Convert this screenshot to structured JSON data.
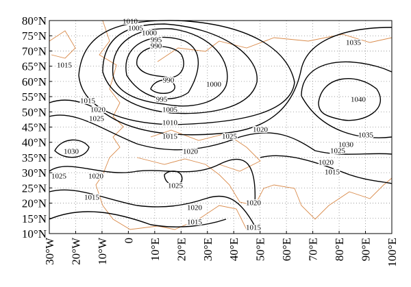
{
  "latitude_labels": [
    "80°N",
    "75°N",
    "70°N",
    "65°N",
    "60°N",
    "55°N",
    "50°N",
    "45°N",
    "40°N",
    "35°N",
    "30°N",
    "25°N",
    "20°N",
    "15°N",
    "10°N"
  ],
  "longitude_labels": [
    "30°W",
    "20°W",
    "10°W",
    "0",
    "10°E",
    "20°E",
    "30°E",
    "40°E",
    "50°E",
    "60°E",
    "70°E",
    "80°E",
    "90°E",
    "100°E"
  ],
  "contour_labels": [
    "1010",
    "1005",
    "1000",
    "995",
    "990",
    "990",
    "1000",
    "995",
    "1005",
    "1010",
    "1015",
    "1020",
    "1025",
    "1020",
    "1015",
    "1015",
    "1020",
    "1025",
    "1030",
    "1025",
    "1020",
    "1025",
    "1015",
    "1020",
    "1015",
    "1020",
    "1015",
    "1035",
    "1040",
    "1035",
    "1030",
    "1025",
    "1020",
    "1015"
  ]
}
